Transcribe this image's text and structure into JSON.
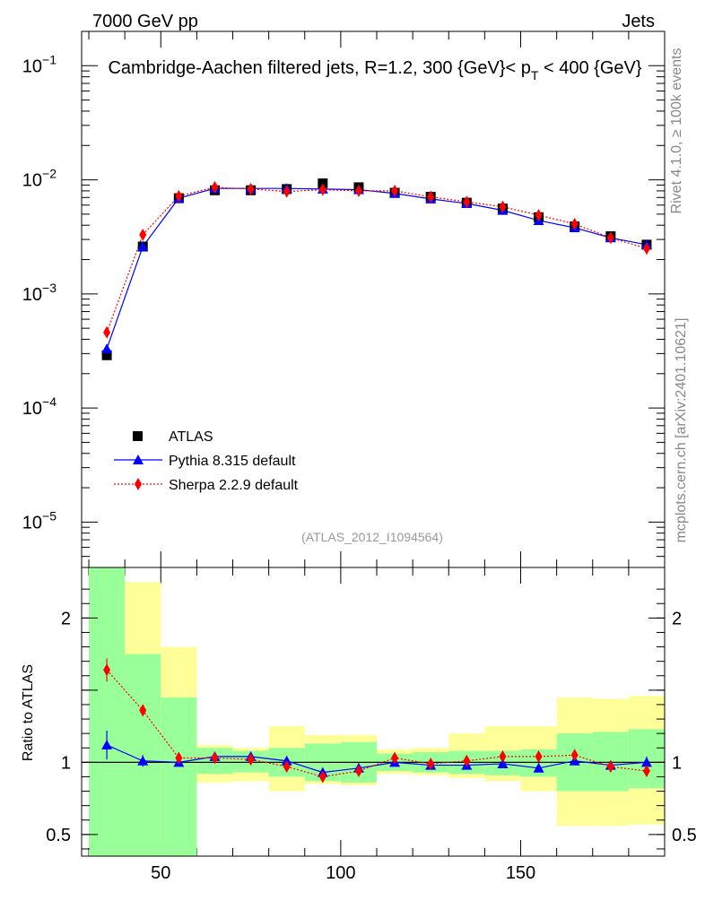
{
  "header": {
    "left_label": "7000 GeV pp",
    "right_label": "Jets"
  },
  "colors": {
    "data": "#000000",
    "pythia": "#0000ff",
    "sherpa": "#ff0000",
    "band_inner": "#99ff99",
    "band_outer": "#ffff99"
  },
  "chart_data": [
    {
      "type": "scatter",
      "title": "Cambridge-Aachen filtered jets, R=1.2, 300 {GeV}< p_T < 400 {GeV}",
      "title_parts": {
        "before": "Cambridge-Aachen filtered jets, R=1.2, 300 {GeV}< p",
        "subscript": "T",
        "after": " < 400 {GeV}"
      },
      "yscale": "log",
      "ylim": [
        4e-06,
        0.2
      ],
      "xlim": [
        28,
        190
      ],
      "y_tick_labels": [
        "10⁻¹",
        "10⁻²",
        "10⁻³",
        "10⁻⁴",
        "10⁻⁵"
      ],
      "y_tick_label_parts": [
        {
          "base": "10",
          "exp": "−1"
        },
        {
          "base": "10",
          "exp": "−2"
        },
        {
          "base": "10",
          "exp": "−3"
        },
        {
          "base": "10",
          "exp": "−4"
        },
        {
          "base": "10",
          "exp": "−5"
        }
      ],
      "legend": {
        "placement": "lower-left",
        "entries": [
          "ATLAS",
          "Pythia 8.315 default",
          "Sherpa 2.2.9 default"
        ]
      },
      "analysis_label": "(ATLAS_2012_I1094564)",
      "x": [
        35,
        45,
        55,
        65,
        75,
        85,
        95,
        105,
        115,
        125,
        135,
        145,
        155,
        165,
        175,
        185
      ],
      "series": [
        {
          "name": "ATLAS",
          "marker": "square",
          "values": [
            0.00029,
            0.0026,
            0.0069,
            0.0081,
            0.0081,
            0.0083,
            0.0093,
            0.0086,
            0.0077,
            0.0071,
            0.0063,
            0.0056,
            0.0047,
            0.0039,
            0.0032,
            0.0027
          ]
        },
        {
          "name": "Pythia 8.315 default",
          "marker": "triangle",
          "values": [
            0.00033,
            0.0026,
            0.0069,
            0.0084,
            0.0084,
            0.0084,
            0.0083,
            0.0082,
            0.0076,
            0.0068,
            0.0062,
            0.0054,
            0.0044,
            0.0038,
            0.0031,
            0.0027
          ]
        },
        {
          "name": "Sherpa 2.2.9 default",
          "marker": "diamond",
          "values": [
            0.00046,
            0.0033,
            0.0072,
            0.0086,
            0.0083,
            0.0079,
            0.0082,
            0.008,
            0.008,
            0.0071,
            0.0064,
            0.0058,
            0.0049,
            0.0041,
            0.0031,
            0.0025
          ]
        }
      ]
    },
    {
      "type": "line",
      "ylabel": "Ratio to ATLAS",
      "ylim": [
        0.35,
        2.35
      ],
      "xlim": [
        28,
        190
      ],
      "y_tick_labels": [
        "2",
        "1",
        "0.5"
      ],
      "x_tick_labels": [
        "50",
        "100",
        "150"
      ],
      "bin_edges": [
        30,
        40,
        50,
        60,
        70,
        80,
        90,
        100,
        110,
        120,
        130,
        140,
        150,
        160,
        170,
        180,
        190
      ],
      "band_inner": {
        "lo": [
          0.3,
          0.3,
          0.3,
          0.92,
          0.93,
          0.9,
          0.87,
          0.86,
          0.94,
          0.93,
          0.92,
          0.91,
          0.9,
          0.8,
          0.8,
          0.82
        ],
        "hi": [
          2.4,
          1.75,
          1.45,
          1.1,
          1.08,
          1.1,
          1.13,
          1.14,
          1.06,
          1.07,
          1.08,
          1.08,
          1.09,
          1.2,
          1.21,
          1.23
        ]
      },
      "band_outer": {
        "lo": [
          0.3,
          0.3,
          0.3,
          0.86,
          0.87,
          0.8,
          0.85,
          0.84,
          0.92,
          0.91,
          0.89,
          0.87,
          0.8,
          0.56,
          0.56,
          0.57
        ],
        "hi": [
          2.4,
          2.25,
          1.8,
          1.12,
          1.1,
          1.25,
          1.19,
          1.19,
          1.09,
          1.1,
          1.2,
          1.25,
          1.25,
          1.45,
          1.44,
          1.46
        ]
      },
      "x": [
        35,
        45,
        55,
        65,
        75,
        85,
        95,
        105,
        115,
        125,
        135,
        145,
        155,
        165,
        175,
        185
      ],
      "series": [
        {
          "name": "Pythia 8.315 default",
          "marker": "triangle",
          "values": [
            1.12,
            1.01,
            1.0,
            1.04,
            1.04,
            1.01,
            0.93,
            0.96,
            1.0,
            0.98,
            0.98,
            0.99,
            0.96,
            1.01,
            0.98,
            1.0
          ],
          "errors": [
            0.1,
            0.04,
            0.02,
            0.02,
            0.02,
            0.02,
            0.02,
            0.02,
            0.02,
            0.02,
            0.02,
            0.02,
            0.02,
            0.03,
            0.03,
            0.04
          ]
        },
        {
          "name": "Sherpa 2.2.9 default",
          "marker": "diamond",
          "values": [
            1.64,
            1.36,
            1.03,
            1.03,
            1.02,
            0.97,
            0.9,
            0.94,
            1.03,
            0.99,
            1.01,
            1.04,
            1.04,
            1.05,
            0.97,
            0.94
          ],
          "errors": [
            0.08,
            0.04,
            0.02,
            0.02,
            0.02,
            0.02,
            0.02,
            0.02,
            0.02,
            0.02,
            0.02,
            0.02,
            0.02,
            0.03,
            0.03,
            0.03
          ]
        }
      ]
    }
  ],
  "side_labels": {
    "rivet": "Rivet 4.1.0, ≥ 100k events",
    "mcplots": "mcplots.cern.ch [arXiv:2401.10621]"
  }
}
